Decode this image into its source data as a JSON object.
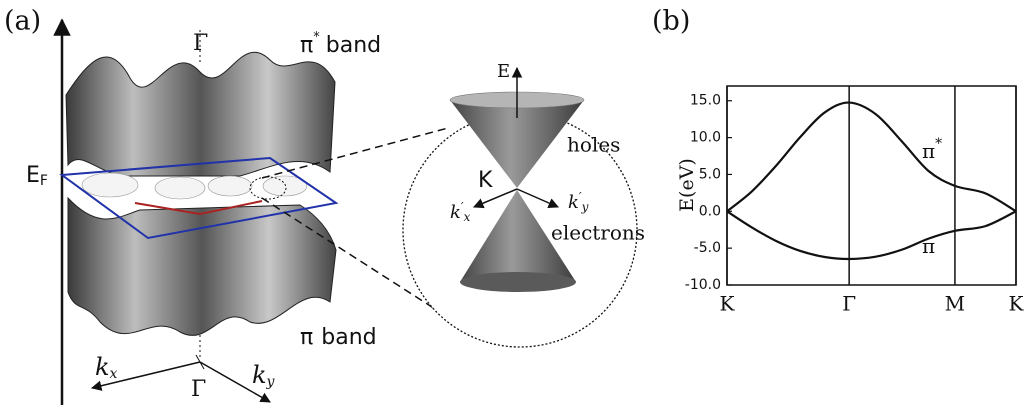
{
  "panel_a": {
    "label": "(a)",
    "gamma_top": "Γ",
    "pi_star_band": {
      "symbol": "π",
      "sup": "*",
      "text": "band"
    },
    "fermi": {
      "main": "E",
      "sub": "F"
    },
    "pi_band": {
      "symbol": "π",
      "text": "band"
    },
    "kx": {
      "main": "k",
      "sub": "x"
    },
    "ky": {
      "main": "k",
      "sub": "y"
    },
    "gamma_bottom": "Γ",
    "inset": {
      "energy": "E",
      "holes": "holes",
      "k_point": "K",
      "kx": {
        "main": "k",
        "prime": "′",
        "sub": "x"
      },
      "ky": {
        "main": "k",
        "prime": "′",
        "sub": "y"
      },
      "electrons": "electrons"
    }
  },
  "chart_data": {
    "type": "line",
    "label": "(b)",
    "ylabel": "E(eV)",
    "x": [
      0,
      0.2,
      0.4,
      0.6,
      0.8,
      1,
      1.217,
      1.433,
      1.65,
      1.866,
      2.116,
      2.366
    ],
    "series": [
      {
        "color": "#111111",
        "values": [
          0,
          2.65,
          6.14,
          10.08,
          13.41,
          14.75,
          13.19,
          9.46,
          5.47,
          3.45,
          2.43,
          0
        ]
      },
      {
        "color": "#111111",
        "values": [
          0,
          -2.15,
          -4.01,
          -5.38,
          -6.2,
          -6.47,
          -6.16,
          -5.2,
          -3.71,
          -2.65,
          -2.01,
          0
        ]
      }
    ],
    "annotations": [
      {
        "text": "π",
        "sup": "*"
      },
      {
        "text": "π"
      }
    ],
    "xlim": [
      0,
      2.366
    ],
    "ylim": [
      -10,
      17
    ],
    "xticks": [
      {
        "value": 0,
        "label": "K"
      },
      {
        "value": 1,
        "label": "Γ"
      },
      {
        "value": 1.866,
        "label": "M"
      },
      {
        "value": 2.366,
        "label": "K"
      }
    ],
    "yticks": [
      {
        "value": 15,
        "label": "15.0"
      },
      {
        "value": 10,
        "label": "10.0"
      },
      {
        "value": 5,
        "label": "5.0"
      },
      {
        "value": 0,
        "label": "0.0"
      },
      {
        "value": -5,
        "label": "-5.0"
      },
      {
        "value": -10,
        "label": "-10.0"
      }
    ],
    "grid": "x"
  }
}
